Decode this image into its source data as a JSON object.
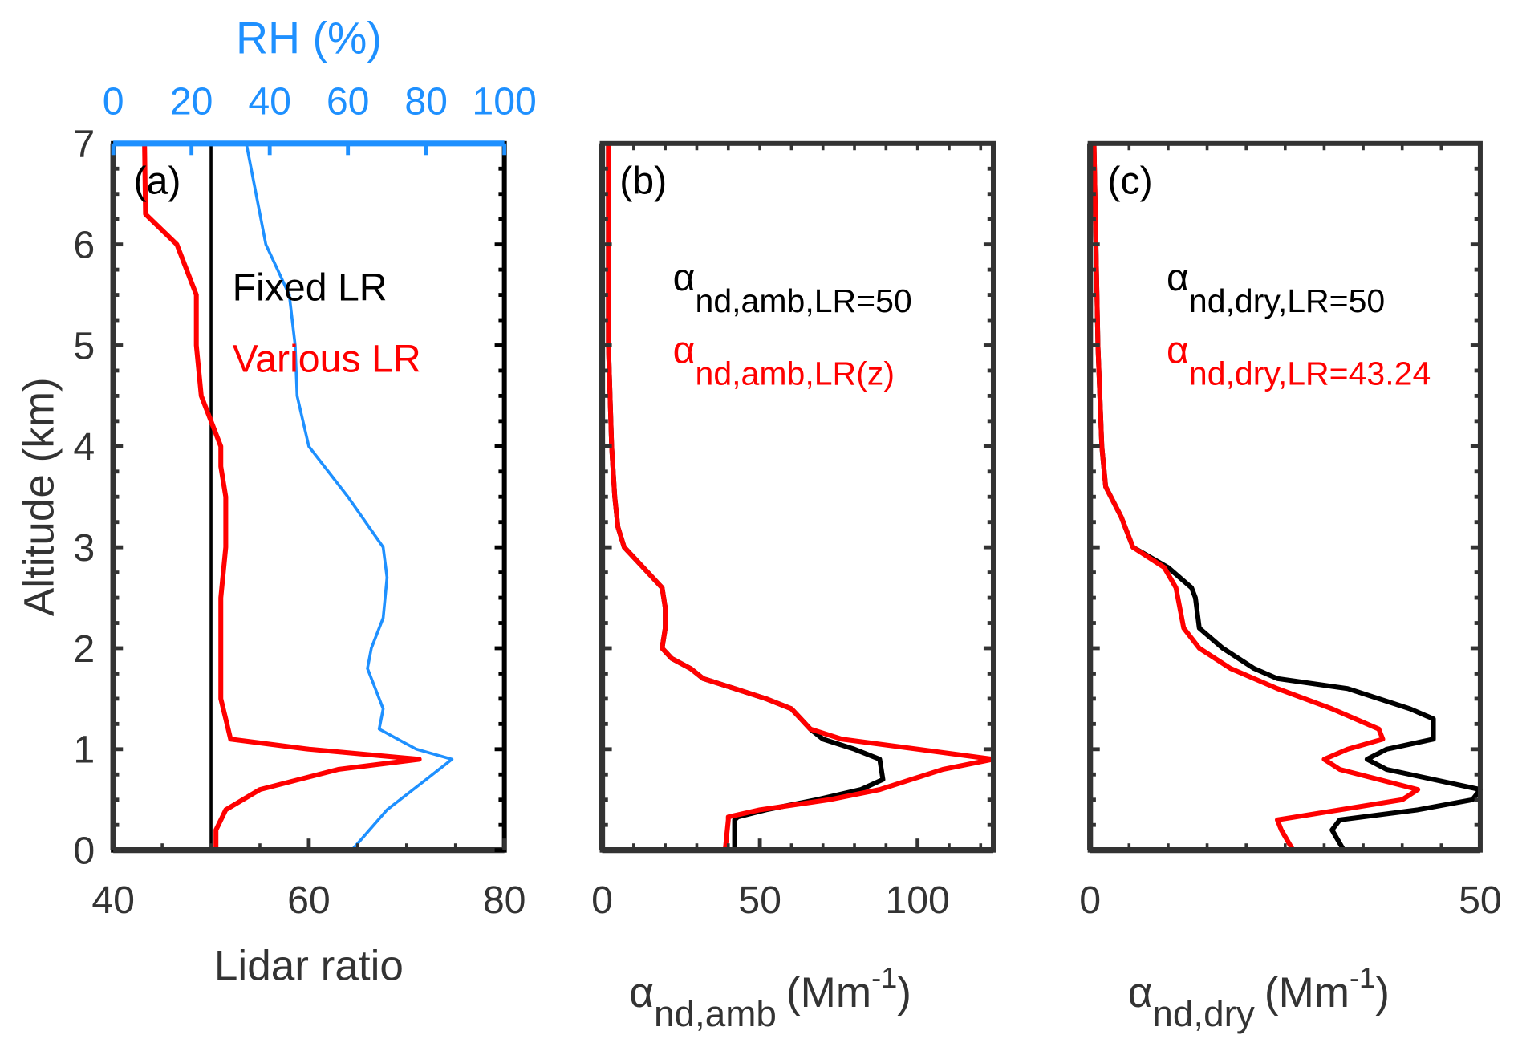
{
  "chart_data": [
    {
      "type": "line",
      "panel_label": "(a)",
      "xlabel": "Lidar ratio",
      "ylabel": "Altitude (km)",
      "xlim": [
        40,
        80
      ],
      "ylim": [
        0,
        7
      ],
      "xticks": [
        "40",
        "60",
        "80"
      ],
      "yticks": [
        "0",
        "1",
        "2",
        "3",
        "4",
        "5",
        "6",
        "7"
      ],
      "top_axis": {
        "label": "RH (%)",
        "lim": [
          0,
          100
        ],
        "ticks": [
          "0",
          "20",
          "40",
          "60",
          "80",
          "100"
        ],
        "color": "#1E90FF"
      },
      "series": [
        {
          "name": "Fixed LR",
          "color": "#000000",
          "x": [
            50,
            50
          ],
          "y": [
            0,
            7
          ]
        },
        {
          "name": "Various LR",
          "color": "#FF0000",
          "x": [
            50.5,
            50.5,
            51.5,
            55,
            63,
            71.3,
            60,
            52,
            51.5,
            51,
            51,
            51,
            51.5,
            51.5,
            51,
            51,
            49,
            48.5,
            48.5,
            46.5,
            43.3,
            43.2
          ],
          "y": [
            0,
            0.2,
            0.4,
            0.6,
            0.8,
            0.9,
            1.0,
            1.1,
            1.3,
            1.5,
            2,
            2.5,
            3,
            3.5,
            3.8,
            4,
            4.5,
            5,
            5.5,
            6,
            6.3,
            7
          ]
        },
        {
          "name": "RH",
          "axis": "top",
          "color": "#1E90FF",
          "x": [
            61,
            70,
            80,
            86.6,
            77.5,
            68,
            69,
            67,
            65,
            66,
            69,
            70,
            69,
            60,
            50,
            47,
            46.5,
            45,
            39,
            34
          ],
          "y": [
            0,
            0.4,
            0.7,
            0.9,
            1.0,
            1.2,
            1.4,
            1.6,
            1.8,
            2,
            2.3,
            2.7,
            3,
            3.5,
            4,
            4.5,
            5,
            5.5,
            6,
            7
          ]
        }
      ]
    },
    {
      "type": "line",
      "panel_label": "(b)",
      "xlabel_main": "α",
      "xlabel_sub": "nd,amb",
      "xlabel_unit": "(Mm",
      "xlabel_sup": "-1",
      "xlabel_close": ")",
      "xlim": [
        0,
        124
      ],
      "ylim": [
        0,
        7
      ],
      "xticks": [
        "0",
        "50",
        "100"
      ],
      "series": [
        {
          "name_main": "α",
          "name_sub": "nd,amb,LR=50",
          "color": "#000000",
          "x": [
            42,
            42,
            43,
            52,
            68,
            82,
            89,
            88,
            80,
            70,
            66,
            63,
            60,
            52,
            42,
            32,
            28,
            22,
            19,
            20,
            20,
            19,
            13,
            7,
            5,
            4,
            3,
            2,
            2
          ],
          "y": [
            0,
            0.3,
            0.33,
            0.4,
            0.5,
            0.6,
            0.7,
            0.9,
            1.0,
            1.1,
            1.2,
            1.3,
            1.4,
            1.5,
            1.6,
            1.7,
            1.8,
            1.9,
            2.0,
            2.2,
            2.4,
            2.6,
            2.8,
            3.0,
            3.2,
            3.5,
            4,
            5,
            7
          ]
        },
        {
          "name_main": "α",
          "name_sub": "nd,amb,LR(z)",
          "color": "#FF0000",
          "x": [
            39,
            40,
            40,
            50,
            72,
            88,
            108,
            124,
            100,
            76,
            66,
            63,
            60,
            52,
            42,
            32,
            28,
            22,
            19,
            20,
            20,
            19,
            13,
            7,
            5,
            4,
            3,
            2,
            2
          ],
          "y": [
            0,
            0.3,
            0.33,
            0.4,
            0.5,
            0.6,
            0.8,
            0.9,
            1.0,
            1.1,
            1.2,
            1.3,
            1.4,
            1.5,
            1.6,
            1.7,
            1.8,
            1.9,
            2.0,
            2.2,
            2.4,
            2.6,
            2.8,
            3.0,
            3.2,
            3.5,
            4,
            5,
            7
          ]
        }
      ]
    },
    {
      "type": "line",
      "panel_label": "(c)",
      "xlabel_main": "α",
      "xlabel_sub": "nd,dry",
      "xlabel_unit": "(Mm",
      "xlabel_sup": "-1",
      "xlabel_close": ")",
      "xlim": [
        0,
        50
      ],
      "ylim": [
        0,
        7
      ],
      "xticks": [
        "0",
        "50"
      ],
      "series": [
        {
          "name_main": "α",
          "name_sub": "nd,dry,LR=50",
          "color": "#000000",
          "x": [
            32.5,
            31,
            32,
            42,
            49,
            50,
            44,
            38,
            35.5,
            38,
            44,
            44,
            41,
            33,
            24,
            21,
            17,
            14,
            13.5,
            13,
            10,
            5.5,
            4,
            2,
            1.5,
            1,
            0.5
          ],
          "y": [
            0,
            0.2,
            0.3,
            0.4,
            0.5,
            0.6,
            0.7,
            0.8,
            0.9,
            1.0,
            1.1,
            1.3,
            1.4,
            1.6,
            1.7,
            1.8,
            2.0,
            2.2,
            2.5,
            2.6,
            2.8,
            3.0,
            3.3,
            3.6,
            4,
            5,
            7
          ]
        },
        {
          "name_main": "α",
          "name_sub": "nd,dry,LR=43.24",
          "color": "#FF0000",
          "x": [
            26,
            24.5,
            24,
            32,
            40,
            42,
            37,
            32,
            30,
            33,
            37.5,
            37,
            31,
            24,
            21,
            18,
            14,
            12,
            11.5,
            11,
            9.5,
            5.5,
            4,
            2,
            1.5,
            1,
            0.5
          ],
          "y": [
            0,
            0.2,
            0.3,
            0.4,
            0.5,
            0.6,
            0.7,
            0.8,
            0.9,
            1.0,
            1.1,
            1.2,
            1.4,
            1.6,
            1.7,
            1.8,
            2.0,
            2.2,
            2.4,
            2.6,
            2.8,
            3.0,
            3.3,
            3.6,
            4,
            5,
            7
          ]
        }
      ]
    }
  ]
}
